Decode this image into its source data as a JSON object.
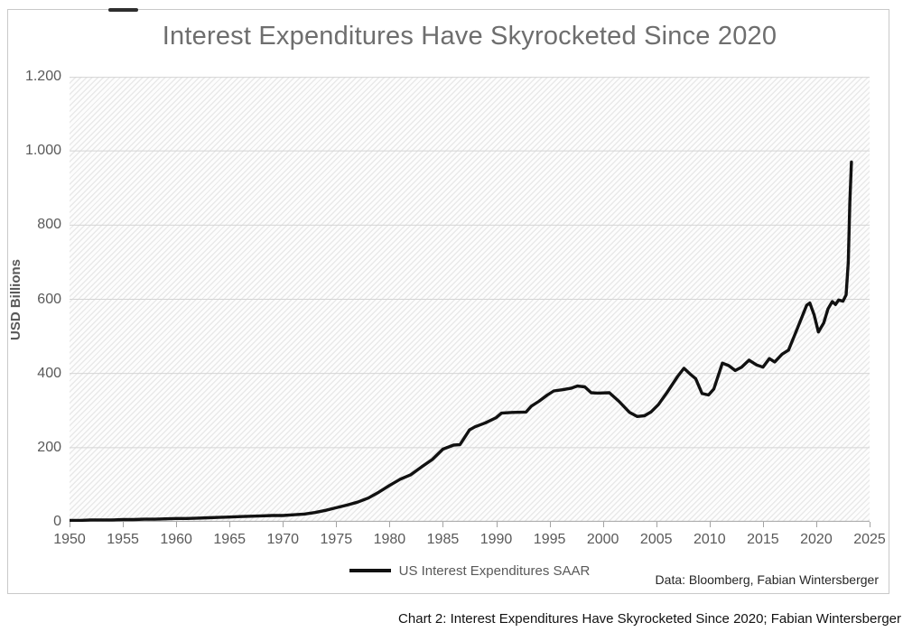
{
  "window": {
    "caption": "Chart 2: Interest Expenditures Have Skyrocketed Since 2020; Fabian Wintersberger"
  },
  "chart": {
    "title": "Interest Expenditures Have Skyrocketed Since 2020",
    "y_axis_title": "USD Billions",
    "legend_label": "US Interest Expenditures SAAR",
    "source_note": "Data: Bloomberg, Fabian Wintersberger"
  },
  "colors": {
    "line": "#111111",
    "axis_text": "#595959",
    "title_text": "#6e6e6e",
    "gridline": "#d4d4d4",
    "axis_line": "#a3a3a3",
    "frame_border": "#c9c9c9"
  },
  "chart_data": {
    "type": "line",
    "title": "Interest Expenditures Have Skyrocketed Since 2020",
    "xlabel": "",
    "ylabel": "USD Billions",
    "xlim": [
      1950,
      2025
    ],
    "ylim": [
      0,
      1200
    ],
    "grid": "horizontal",
    "background_pattern": "diagonal-hatch",
    "legend_position": "bottom-center",
    "x_ticks": [
      1950,
      1955,
      1960,
      1965,
      1970,
      1975,
      1980,
      1985,
      1990,
      1995,
      2000,
      2005,
      2010,
      2015,
      2020,
      2025
    ],
    "y_ticks": [
      {
        "value": 0,
        "label": "0"
      },
      {
        "value": 200,
        "label": "200"
      },
      {
        "value": 400,
        "label": "400"
      },
      {
        "value": 600,
        "label": "600"
      },
      {
        "value": 800,
        "label": "800"
      },
      {
        "value": 1000,
        "label": "1.000"
      },
      {
        "value": 1200,
        "label": "1.200"
      }
    ],
    "series": [
      {
        "name": "US Interest Expenditures SAAR",
        "color": "#111111",
        "points": [
          [
            1950,
            4
          ],
          [
            1951,
            4
          ],
          [
            1952,
            5
          ],
          [
            1953,
            5
          ],
          [
            1954,
            5
          ],
          [
            1955,
            6
          ],
          [
            1956,
            6
          ],
          [
            1957,
            7
          ],
          [
            1958,
            7
          ],
          [
            1959,
            8
          ],
          [
            1960,
            9
          ],
          [
            1961,
            9
          ],
          [
            1962,
            10
          ],
          [
            1963,
            11
          ],
          [
            1964,
            12
          ],
          [
            1965,
            13
          ],
          [
            1966,
            14
          ],
          [
            1967,
            15
          ],
          [
            1968,
            16
          ],
          [
            1969,
            17
          ],
          [
            1970,
            17
          ],
          [
            1971,
            19
          ],
          [
            1972,
            21
          ],
          [
            1973,
            25
          ],
          [
            1974,
            31
          ],
          [
            1975,
            38
          ],
          [
            1976,
            45
          ],
          [
            1977,
            53
          ],
          [
            1978,
            64
          ],
          [
            1979,
            80
          ],
          [
            1980,
            98
          ],
          [
            1981,
            115
          ],
          [
            1982,
            127
          ],
          [
            1983,
            148
          ],
          [
            1984,
            168
          ],
          [
            1985,
            196
          ],
          [
            1986,
            207
          ],
          [
            1986.6,
            208
          ],
          [
            1987.5,
            248
          ],
          [
            1988,
            256
          ],
          [
            1989,
            267
          ],
          [
            1990,
            281
          ],
          [
            1990.5,
            293
          ],
          [
            1991.5,
            295
          ],
          [
            1992.8,
            296
          ],
          [
            1993.3,
            312
          ],
          [
            1994,
            325
          ],
          [
            1994.8,
            342
          ],
          [
            1995.4,
            353
          ],
          [
            1996.2,
            356
          ],
          [
            1997,
            360
          ],
          [
            1997.6,
            366
          ],
          [
            1998.3,
            364
          ],
          [
            1998.9,
            348
          ],
          [
            1999.5,
            347
          ],
          [
            2000.6,
            348
          ],
          [
            2001.5,
            325
          ],
          [
            2002.5,
            295
          ],
          [
            2003.2,
            284
          ],
          [
            2003.9,
            286
          ],
          [
            2004.5,
            296
          ],
          [
            2005.2,
            316
          ],
          [
            2006,
            348
          ],
          [
            2007,
            392
          ],
          [
            2007.6,
            414
          ],
          [
            2008.2,
            398
          ],
          [
            2008.7,
            386
          ],
          [
            2009.3,
            346
          ],
          [
            2009.9,
            342
          ],
          [
            2010.4,
            358
          ],
          [
            2011.2,
            428
          ],
          [
            2011.8,
            421
          ],
          [
            2012.4,
            408
          ],
          [
            2013,
            417
          ],
          [
            2013.7,
            436
          ],
          [
            2014.4,
            423
          ],
          [
            2015,
            417
          ],
          [
            2015.6,
            440
          ],
          [
            2016.1,
            431
          ],
          [
            2016.8,
            452
          ],
          [
            2017.4,
            463
          ],
          [
            2018,
            505
          ],
          [
            2018.6,
            548
          ],
          [
            2019.1,
            584
          ],
          [
            2019.4,
            590
          ],
          [
            2019.8,
            558
          ],
          [
            2020.2,
            512
          ],
          [
            2020.7,
            536
          ],
          [
            2021.1,
            574
          ],
          [
            2021.5,
            594
          ],
          [
            2021.8,
            586
          ],
          [
            2022.1,
            598
          ],
          [
            2022.5,
            595
          ],
          [
            2022.8,
            612
          ],
          [
            2023,
            700
          ],
          [
            2023.15,
            860
          ],
          [
            2023.3,
            970
          ]
        ]
      }
    ]
  }
}
